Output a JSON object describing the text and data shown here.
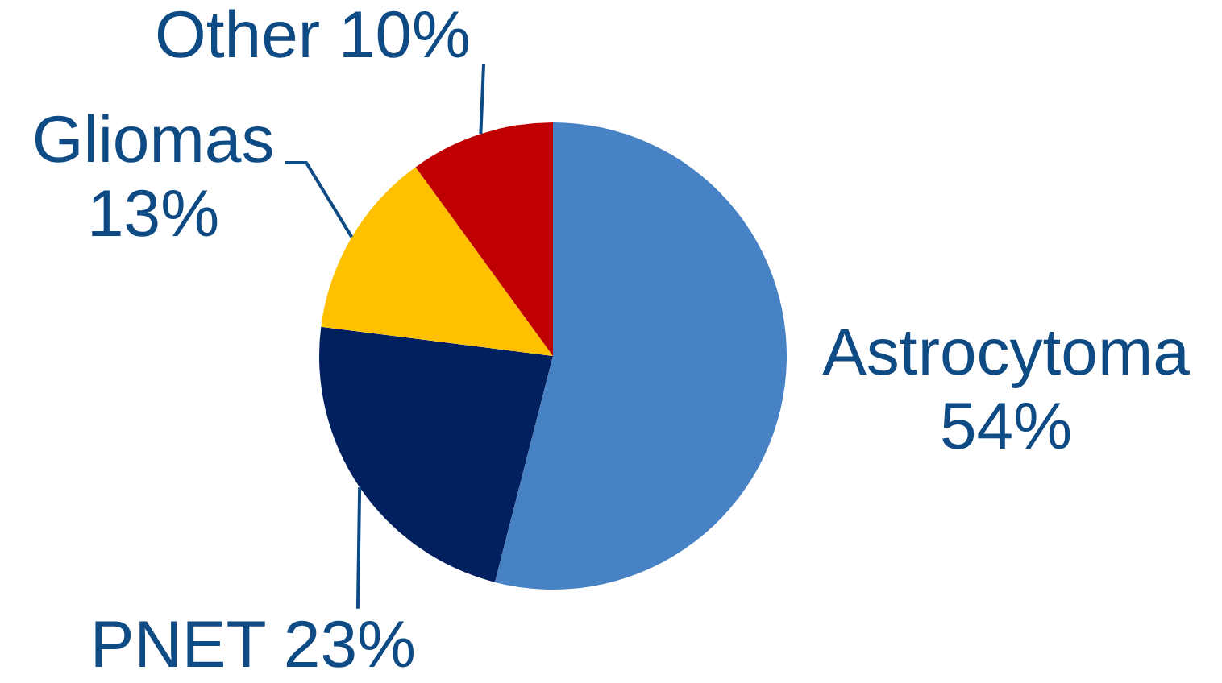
{
  "chart_data": {
    "type": "pie",
    "categories": [
      "Astrocytoma",
      "PNET",
      "Gliomas",
      "Other"
    ],
    "values": [
      54,
      23,
      13,
      10
    ],
    "colors": [
      "#4682c4",
      "#002060",
      "#ffc000",
      "#c00000"
    ],
    "value_labels": [
      "54%",
      "23%",
      "13%",
      "10%"
    ]
  }
}
